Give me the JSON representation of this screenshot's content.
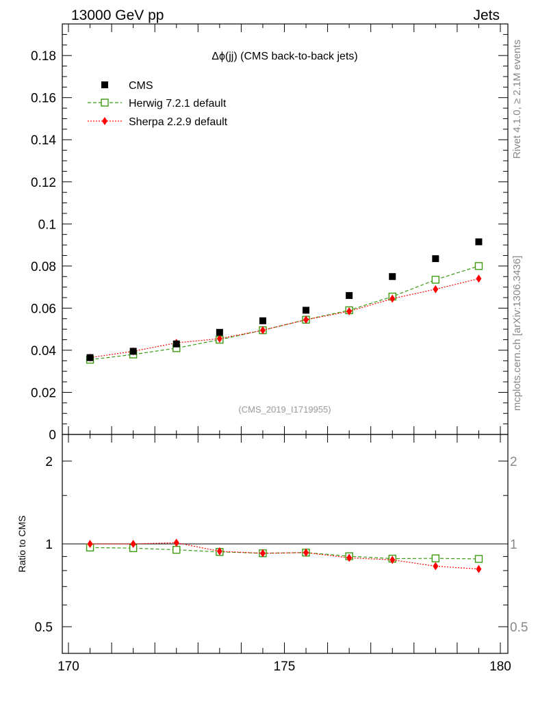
{
  "header": {
    "left": "13000 GeV pp",
    "right": "Jets"
  },
  "side_labels": {
    "rivet": "Rivet 4.1.0, ≥ 2.1M events",
    "mcplots": "mcplots.cern.ch [arXiv:1306.3436]"
  },
  "watermark": "(CMS_2019_I1719955)",
  "colors": {
    "data": "#000000",
    "herwig": "#3a9a0f",
    "sherpa": "#ff0000"
  },
  "chart_data": [
    {
      "type": "scatter",
      "panel": "main",
      "title": "Δϕ(jj) (CMS back-to-back jets)",
      "xlabel": "",
      "ylabel": "",
      "xlim": [
        170,
        180
      ],
      "ylim": [
        0,
        0.195
      ],
      "yticks": [
        0,
        0.02,
        0.04,
        0.06,
        0.08,
        0.1,
        0.12,
        0.14,
        0.16,
        0.18
      ],
      "ytick_labels": [
        "0",
        "0.02",
        "0.04",
        "0.06",
        "0.08",
        "0.1",
        "0.12",
        "0.14",
        "0.16",
        "0.18"
      ],
      "legend_position": "top-left",
      "x": [
        170.5,
        171.5,
        172.5,
        173.5,
        174.5,
        175.5,
        176.5,
        177.5,
        178.5,
        179.5
      ],
      "series": [
        {
          "name": "CMS",
          "key": "data",
          "marker": "filled-square",
          "line": "none",
          "values": [
            0.0365,
            0.0395,
            0.043,
            0.0485,
            0.054,
            0.059,
            0.066,
            0.075,
            0.0835,
            0.0915
          ]
        },
        {
          "name": "Herwig 7.2.1 default",
          "key": "herwig",
          "marker": "open-square",
          "line": "dashed",
          "values": [
            0.0355,
            0.038,
            0.041,
            0.045,
            0.0495,
            0.0545,
            0.059,
            0.0655,
            0.0735,
            0.08
          ]
        },
        {
          "name": "Sherpa 2.2.9 default",
          "key": "sherpa",
          "marker": "filled-diamond",
          "line": "dotted",
          "values": [
            0.0365,
            0.0395,
            0.0435,
            0.0455,
            0.0495,
            0.0545,
            0.0585,
            0.0645,
            0.069,
            0.074
          ]
        }
      ]
    },
    {
      "type": "scatter",
      "panel": "ratio",
      "title": "",
      "xlabel": "",
      "ylabel": "Ratio to CMS",
      "xlim": [
        170,
        180
      ],
      "ylim": [
        0.4,
        2.5
      ],
      "yscale": "log",
      "yticks": [
        0.5,
        1,
        2
      ],
      "ytick_labels": [
        "0.5",
        "1",
        "2"
      ],
      "xticks": [
        170,
        175,
        180
      ],
      "xtick_labels": [
        "170",
        "175",
        "180"
      ],
      "reference_line": 1,
      "x": [
        170.5,
        171.5,
        172.5,
        173.5,
        174.5,
        175.5,
        176.5,
        177.5,
        178.5,
        179.5
      ],
      "series": [
        {
          "name": "Herwig 7.2.1 default",
          "key": "herwig",
          "marker": "open-square",
          "line": "dashed",
          "values": [
            0.97,
            0.965,
            0.952,
            0.935,
            0.925,
            0.93,
            0.902,
            0.884,
            0.886,
            0.882
          ]
        },
        {
          "name": "Sherpa 2.2.9 default",
          "key": "sherpa",
          "marker": "filled-diamond",
          "line": "dotted",
          "values": [
            1.0,
            1.0,
            1.01,
            0.94,
            0.925,
            0.93,
            0.89,
            0.875,
            0.83,
            0.81
          ]
        }
      ]
    }
  ]
}
